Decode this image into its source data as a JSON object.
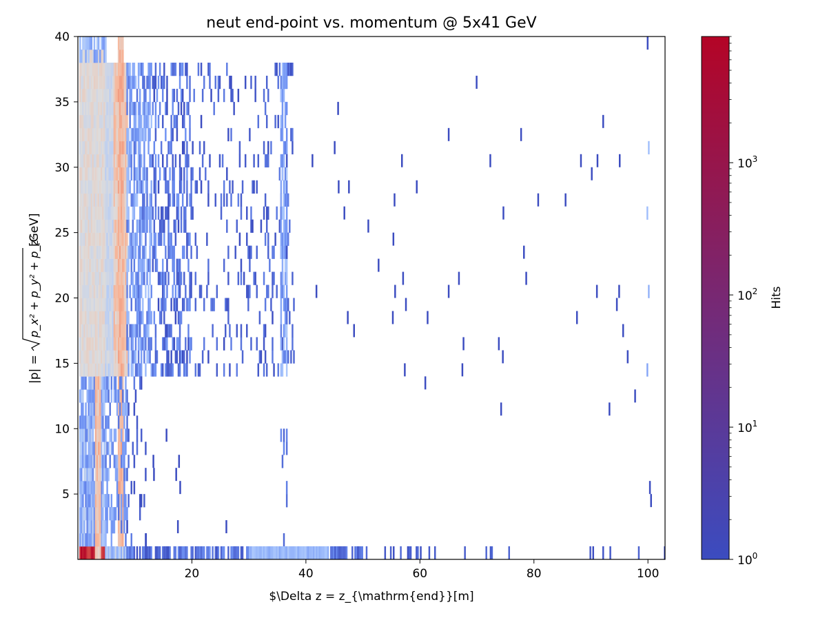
{
  "chart_data": {
    "type": "heatmap",
    "title": "neut end-point vs. momentum @ 5x41 GeV",
    "xlabel": "$\\Delta z = z_{\\mathrm{end}}[m]",
    "ylabel_parts": {
      "prefix": "|p| = ",
      "radicand": "p_x² + p_y² + p_z²",
      "suffix": " [GeV]"
    },
    "xlim": [
      0,
      103
    ],
    "ylim": [
      0,
      40
    ],
    "xticks": [
      20,
      40,
      60,
      80,
      100
    ],
    "yticks": [
      5,
      10,
      15,
      20,
      25,
      30,
      35,
      40
    ],
    "colorbar": {
      "label": "Hits",
      "scale": "log",
      "range": [
        1,
        9000
      ],
      "colormap": "coolwarm",
      "ticks": [
        {
          "value": 1,
          "base": "10",
          "exp": "0"
        },
        {
          "value": 10,
          "base": "10",
          "exp": "1"
        },
        {
          "value": 100,
          "base": "10",
          "exp": "2"
        },
        {
          "value": 1000,
          "base": "10",
          "exp": "3"
        }
      ]
    },
    "colormap_stops": [
      "#3b4cc0",
      "#6f92f3",
      "#aac7fd",
      "#dddcdc",
      "#f7b89c",
      "#e7745b",
      "#b40426"
    ],
    "binning": {
      "dx": 0.25,
      "dy": 1.0
    },
    "regions": [
      {
        "x": [
          0.3,
          4.9
        ],
        "y": [
          0,
          1
        ],
        "density": 1,
        "hits": [
          3000,
          9000
        ]
      },
      {
        "x": [
          0.3,
          4.9
        ],
        "y": [
          1,
          14
        ],
        "density": 0.85,
        "hits": [
          3,
          40
        ]
      },
      {
        "x": [
          0.3,
          4.9
        ],
        "y": [
          14,
          38.5
        ],
        "density": 1,
        "hits": [
          60,
          170
        ]
      },
      {
        "x": [
          0.3,
          4.9
        ],
        "y": [
          38.5,
          40
        ],
        "density": 0.5,
        "hits": [
          5,
          30
        ]
      },
      {
        "x": [
          3.2,
          4.0
        ],
        "y": [
          0,
          14
        ],
        "density": 1,
        "hits": [
          150,
          600
        ]
      },
      {
        "x": [
          4.9,
          8.6
        ],
        "y": [
          0,
          1
        ],
        "density": 0.95,
        "hits": [
          8,
          60
        ]
      },
      {
        "x": [
          4.9,
          6.4
        ],
        "y": [
          14,
          38
        ],
        "density": 1,
        "hits": [
          30,
          90
        ]
      },
      {
        "x": [
          6.4,
          8.6
        ],
        "y": [
          14,
          38
        ],
        "density": 1,
        "hits": [
          100,
          500
        ]
      },
      {
        "x": [
          7.2,
          7.9
        ],
        "y": [
          1,
          40
        ],
        "density": 1,
        "hits": [
          200,
          800
        ]
      },
      {
        "x": [
          4.9,
          8.6
        ],
        "y": [
          1,
          14
        ],
        "density": 0.45,
        "hits": [
          2,
          15
        ]
      },
      {
        "x": [
          8.6,
          13
        ],
        "y": [
          14,
          38
        ],
        "density": 0.65,
        "hits": [
          2,
          20
        ]
      },
      {
        "x": [
          13,
          20
        ],
        "y": [
          14,
          38
        ],
        "density": 0.4,
        "hits": [
          1,
          6
        ]
      },
      {
        "x": [
          20,
          32
        ],
        "y": [
          14,
          38
        ],
        "density": 0.11,
        "hits": [
          1,
          3
        ]
      },
      {
        "x": [
          32,
          36
        ],
        "y": [
          14,
          38
        ],
        "density": 0.16,
        "hits": [
          1,
          3
        ]
      },
      {
        "x": [
          8.6,
          12
        ],
        "y": [
          1,
          14
        ],
        "density": 0.1,
        "hits": [
          1,
          3
        ]
      },
      {
        "x": [
          35.6,
          36.6
        ],
        "y": [
          14,
          38
        ],
        "density": 0.7,
        "hits": [
          3,
          25
        ]
      },
      {
        "x": [
          35.6,
          36.6
        ],
        "y": [
          1,
          14
        ],
        "density": 0.15,
        "hits": [
          1,
          4
        ]
      },
      {
        "x": [
          36.6,
          38
        ],
        "y": [
          15,
          38
        ],
        "density": 0.12,
        "hits": [
          1,
          3
        ]
      },
      {
        "x": [
          8.6,
          30
        ],
        "y": [
          0,
          1
        ],
        "density": 0.7,
        "hits": [
          1,
          5
        ]
      },
      {
        "x": [
          30,
          44
        ],
        "y": [
          0,
          1
        ],
        "density": 0.95,
        "hits": [
          8,
          25
        ]
      },
      {
        "x": [
          44,
          50
        ],
        "y": [
          0,
          1
        ],
        "density": 0.75,
        "hits": [
          1,
          4
        ]
      },
      {
        "x": [
          50,
          62
        ],
        "y": [
          0,
          1
        ],
        "density": 0.35,
        "hits": [
          1,
          2
        ]
      },
      {
        "x": [
          62,
          100
        ],
        "y": [
          0,
          1
        ],
        "density": 0.09,
        "hits": [
          1,
          2
        ]
      },
      {
        "x": [
          99.9,
          100.1
        ],
        "y": [
          14,
          38
        ],
        "density": 0.12,
        "hits": [
          5,
          20
        ]
      }
    ],
    "points": [
      {
        "x": 69.8,
        "y": 36.5,
        "hits": 1
      },
      {
        "x": 45.5,
        "y": 34.5,
        "hits": 1
      },
      {
        "x": 92.0,
        "y": 33.5,
        "hits": 1
      },
      {
        "x": 64.9,
        "y": 32.5,
        "hits": 1
      },
      {
        "x": 77.6,
        "y": 32.5,
        "hits": 1
      },
      {
        "x": 44.9,
        "y": 31.5,
        "hits": 1
      },
      {
        "x": 41.0,
        "y": 30.5,
        "hits": 1
      },
      {
        "x": 56.7,
        "y": 30.5,
        "hits": 1
      },
      {
        "x": 72.2,
        "y": 30.5,
        "hits": 1
      },
      {
        "x": 88.1,
        "y": 30.5,
        "hits": 1
      },
      {
        "x": 91.0,
        "y": 30.5,
        "hits": 1
      },
      {
        "x": 94.9,
        "y": 30.5,
        "hits": 1
      },
      {
        "x": 90.0,
        "y": 29.5,
        "hits": 1
      },
      {
        "x": 45.6,
        "y": 28.5,
        "hits": 1
      },
      {
        "x": 47.4,
        "y": 28.5,
        "hits": 1
      },
      {
        "x": 59.3,
        "y": 28.5,
        "hits": 1
      },
      {
        "x": 55.4,
        "y": 27.5,
        "hits": 1
      },
      {
        "x": 80.6,
        "y": 27.5,
        "hits": 1
      },
      {
        "x": 85.4,
        "y": 27.5,
        "hits": 1
      },
      {
        "x": 46.6,
        "y": 26.5,
        "hits": 1
      },
      {
        "x": 74.5,
        "y": 26.5,
        "hits": 1
      },
      {
        "x": 50.8,
        "y": 25.5,
        "hits": 1
      },
      {
        "x": 55.2,
        "y": 24.5,
        "hits": 1
      },
      {
        "x": 78.1,
        "y": 23.5,
        "hits": 1
      },
      {
        "x": 52.6,
        "y": 22.5,
        "hits": 1
      },
      {
        "x": 56.9,
        "y": 21.5,
        "hits": 1
      },
      {
        "x": 66.7,
        "y": 21.5,
        "hits": 1
      },
      {
        "x": 78.5,
        "y": 21.5,
        "hits": 1
      },
      {
        "x": 41.7,
        "y": 20.5,
        "hits": 1
      },
      {
        "x": 55.5,
        "y": 20.5,
        "hits": 1
      },
      {
        "x": 64.9,
        "y": 20.5,
        "hits": 1
      },
      {
        "x": 90.9,
        "y": 20.5,
        "hits": 1
      },
      {
        "x": 94.8,
        "y": 20.5,
        "hits": 1
      },
      {
        "x": 57.4,
        "y": 19.5,
        "hits": 1
      },
      {
        "x": 94.4,
        "y": 19.5,
        "hits": 1
      },
      {
        "x": 47.2,
        "y": 18.5,
        "hits": 1
      },
      {
        "x": 55.1,
        "y": 18.5,
        "hits": 1
      },
      {
        "x": 61.2,
        "y": 18.5,
        "hits": 1
      },
      {
        "x": 87.4,
        "y": 18.5,
        "hits": 1
      },
      {
        "x": 48.3,
        "y": 17.5,
        "hits": 1
      },
      {
        "x": 95.5,
        "y": 17.5,
        "hits": 1
      },
      {
        "x": 67.5,
        "y": 16.5,
        "hits": 1
      },
      {
        "x": 73.7,
        "y": 16.5,
        "hits": 1
      },
      {
        "x": 74.4,
        "y": 15.5,
        "hits": 1
      },
      {
        "x": 96.3,
        "y": 15.5,
        "hits": 1
      },
      {
        "x": 57.2,
        "y": 14.5,
        "hits": 1
      },
      {
        "x": 67.3,
        "y": 14.5,
        "hits": 1
      },
      {
        "x": 60.8,
        "y": 13.5,
        "hits": 1
      },
      {
        "x": 97.6,
        "y": 12.5,
        "hits": 1
      },
      {
        "x": 74.1,
        "y": 11.5,
        "hits": 1
      },
      {
        "x": 93.1,
        "y": 11.5,
        "hits": 1
      },
      {
        "x": 15.4,
        "y": 9.5,
        "hits": 1
      },
      {
        "x": 13.1,
        "y": 7.5,
        "hits": 1
      },
      {
        "x": 17.6,
        "y": 7.5,
        "hits": 1
      },
      {
        "x": 17.1,
        "y": 6.5,
        "hits": 1
      },
      {
        "x": 13.2,
        "y": 6.5,
        "hits": 1
      },
      {
        "x": 17.8,
        "y": 5.5,
        "hits": 1
      },
      {
        "x": 100.2,
        "y": 5.5,
        "hits": 1
      },
      {
        "x": 100.4,
        "y": 4.5,
        "hits": 1
      },
      {
        "x": 17.4,
        "y": 2.5,
        "hits": 1
      },
      {
        "x": 25.9,
        "y": 2.5,
        "hits": 1
      },
      {
        "x": 11.8,
        "y": 1.5,
        "hits": 1
      },
      {
        "x": 102.8,
        "y": 0.5,
        "hits": 1
      },
      {
        "x": 99.8,
        "y": 39.5,
        "hits": 1
      }
    ]
  }
}
